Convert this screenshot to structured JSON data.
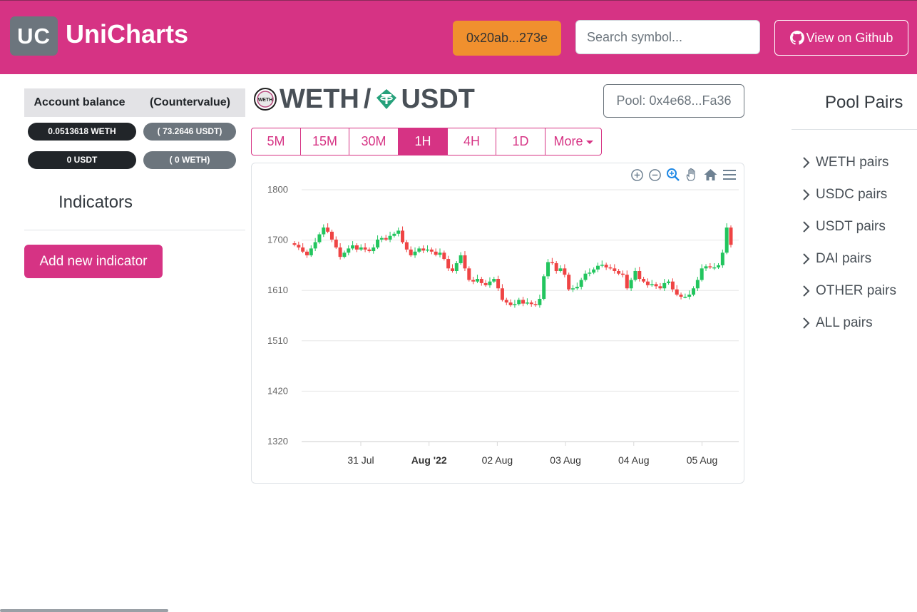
{
  "navbar": {
    "logo_text": "UC",
    "brand": "UniCharts",
    "wallet_label": "0x20ab...273e",
    "search_placeholder": "Search symbol...",
    "github_label": "View on Github",
    "colors": {
      "background": "#d63384",
      "wallet": "#f0902e",
      "logo": "#6c757d"
    }
  },
  "balance": {
    "headers": [
      "Account balance",
      "(Countervalue)"
    ],
    "rows": [
      {
        "amount": "0.0513618 WETH",
        "countervalue": "( 73.2646 USDT)"
      },
      {
        "amount": "0 USDT",
        "countervalue": "( 0 WETH)"
      }
    ]
  },
  "indicators": {
    "title": "Indicators",
    "add_label": "Add new indicator"
  },
  "pair": {
    "base": "WETH",
    "separator": "/",
    "quote": "USDT",
    "pool_label": "Pool: 0x4e68...Fa36"
  },
  "timeframes": {
    "options": [
      "5M",
      "15M",
      "30M",
      "1H",
      "4H",
      "1D"
    ],
    "active": "1H",
    "more_label": "More"
  },
  "toolbar_icons": [
    "zoom-in-icon",
    "zoom-out-icon",
    "selection-zoom-icon",
    "pan-icon",
    "home-icon",
    "menu-icon"
  ],
  "chart_data": {
    "type": "candlestick",
    "y_ticks": [
      "1800",
      "1700",
      "1610",
      "1510",
      "1420",
      "1320"
    ],
    "x_ticks": [
      {
        "label": "31 Jul",
        "bold": false
      },
      {
        "label": "Aug '22",
        "bold": true
      },
      {
        "label": "02 Aug",
        "bold": false
      },
      {
        "label": "03 Aug",
        "bold": false
      },
      {
        "label": "04 Aug",
        "bold": false
      },
      {
        "label": "05 Aug",
        "bold": false
      }
    ],
    "ylim": [
      1320,
      1800
    ],
    "grid": true,
    "colors": {
      "up": "#22c55e",
      "down": "#ef4444",
      "grid": "#e6e6e6"
    },
    "close_path": [
      1695,
      1690,
      1682,
      1675,
      1688,
      1700,
      1715,
      1728,
      1720,
      1705,
      1690,
      1672,
      1680,
      1688,
      1694,
      1686,
      1690,
      1686,
      1683,
      1690,
      1705,
      1708,
      1705,
      1712,
      1716,
      1722,
      1700,
      1686,
      1675,
      1682,
      1688,
      1684,
      1686,
      1682,
      1676,
      1680,
      1668,
      1650,
      1645,
      1660,
      1675,
      1650,
      1628,
      1625,
      1630,
      1622,
      1618,
      1625,
      1630,
      1612,
      1590,
      1585,
      1580,
      1582,
      1590,
      1583,
      1585,
      1582,
      1580,
      1592,
      1635,
      1662,
      1660,
      1645,
      1650,
      1638,
      1610,
      1612,
      1615,
      1628,
      1640,
      1642,
      1648,
      1655,
      1657,
      1652,
      1650,
      1645,
      1640,
      1638,
      1612,
      1628,
      1645,
      1630,
      1625,
      1618,
      1620,
      1616,
      1612,
      1622,
      1625,
      1610,
      1600,
      1596,
      1596,
      1600,
      1612,
      1628,
      1650,
      1654,
      1652,
      1652,
      1656,
      1680,
      1728,
      1695
    ]
  },
  "pool_pairs": {
    "title": "Pool Pairs",
    "items": [
      "WETH pairs",
      "USDC pairs",
      "USDT pairs",
      "DAI pairs",
      "OTHER pairs",
      "ALL pairs"
    ]
  }
}
